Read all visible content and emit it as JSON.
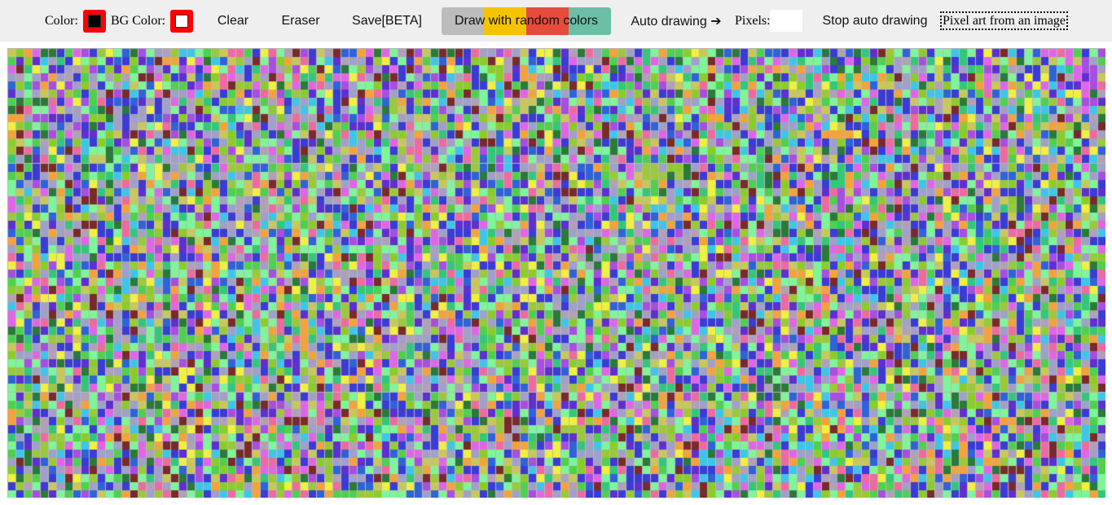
{
  "toolbar": {
    "color_label": "Color:",
    "color_value": "#000000",
    "bg_color_label": "BG Color:",
    "bg_color_value": "#ffffff",
    "clear_label": "Clear",
    "eraser_label": "Eraser",
    "save_label": "Save[BETA]",
    "random_colors_label": "Draw with random colors",
    "random_colors_bands": [
      "#bcbcbc",
      "#f5c400",
      "#e64b3c",
      "#6cbfa6"
    ],
    "auto_drawing_label": "Auto drawing ➔",
    "pixels_label": "Pixels:",
    "pixels_value": "",
    "stop_auto_label": "Stop auto drawing",
    "image_label": "Pixel art from an image"
  },
  "canvas": {
    "columns": 135,
    "rows": 55,
    "palette": [
      "#a0a0c8",
      "#a0a0c8",
      "#b0a0b8",
      "#7ff59a",
      "#7ff59a",
      "#3b3bd6",
      "#3b3bd6",
      "#2f63d8",
      "#e066e6",
      "#a84ee0",
      "#9ac93a",
      "#8acd2a",
      "#f4a23c",
      "#2a7a3a",
      "#3ec6e8",
      "#33c77a",
      "#7a2a2a",
      "#f0f040",
      "#ee6aa0",
      "#5f2fd0",
      "#c8c85a",
      "#4fd04f"
    ]
  }
}
